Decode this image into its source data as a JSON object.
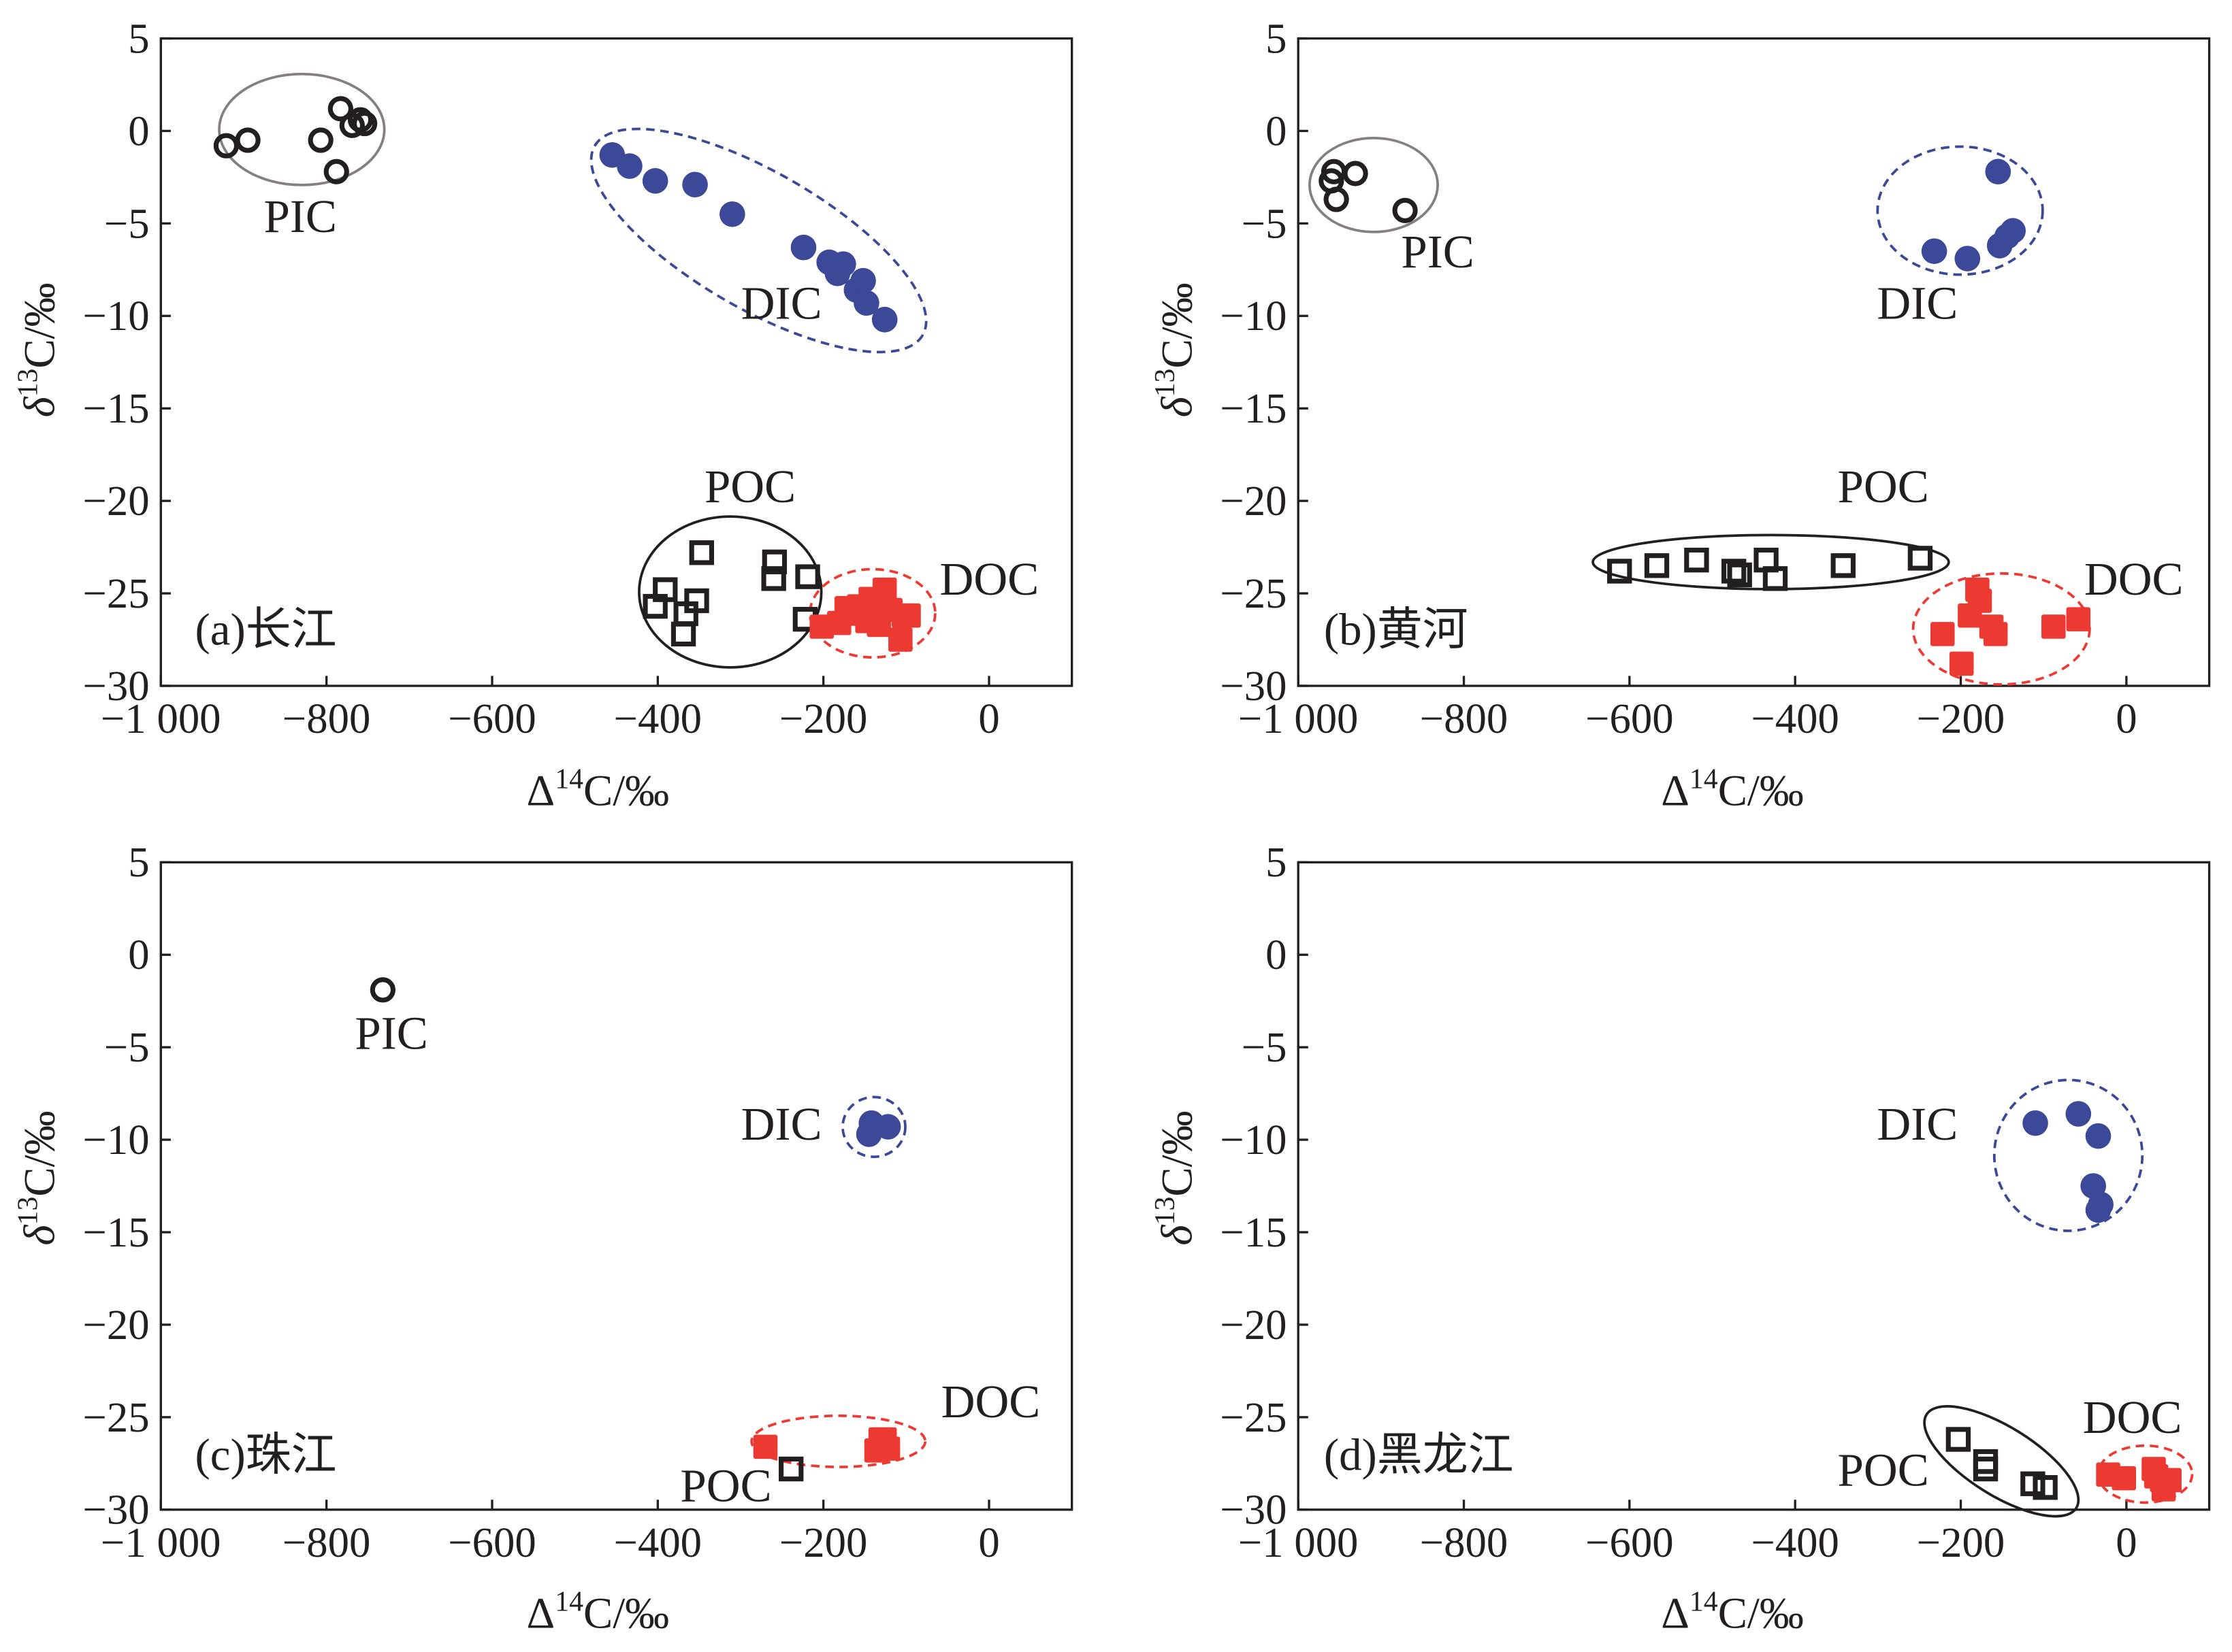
{
  "colors": {
    "ink": "#231f20",
    "dic_blue": "#3c4898",
    "doc_red": "#ec3a33",
    "pic_ellipse_gray": "#85807f"
  },
  "chart_data": [
    {
      "type": "scatter",
      "panel_label": "(a)长江",
      "xlabel": {
        "symbol": "Δ",
        "superscript": "14",
        "rest": "C/‰"
      },
      "ylabel": {
        "symbol": "δ",
        "superscript": "13",
        "rest": "C/‰"
      },
      "xlim": [
        -1000,
        100
      ],
      "ylim": [
        -30,
        5
      ],
      "xticks": [
        {
          "value": -1000,
          "label": "−1 000"
        },
        {
          "value": -800,
          "label": "−800"
        },
        {
          "value": -600,
          "label": "−600"
        },
        {
          "value": -400,
          "label": "−400"
        },
        {
          "value": -200,
          "label": "−200"
        },
        {
          "value": 0,
          "label": "0"
        }
      ],
      "yticks": [
        {
          "value": 5,
          "label": "5"
        },
        {
          "value": 0,
          "label": "0"
        },
        {
          "value": -5,
          "label": "−5"
        },
        {
          "value": -10,
          "label": "−10"
        },
        {
          "value": -15,
          "label": "−15"
        },
        {
          "value": -20,
          "label": "−20"
        },
        {
          "value": -25,
          "label": "−25"
        },
        {
          "value": -30,
          "label": "−30"
        }
      ],
      "grid": false,
      "legend": "none",
      "series": [
        {
          "name": "PIC",
          "marker": "open-circle",
          "color": "#231f20",
          "points": [
            [
              -921,
              -0.8
            ],
            [
              -895,
              -0.5
            ],
            [
              -807,
              -0.5
            ],
            [
              -783,
              1.2
            ],
            [
              -769,
              0.3
            ],
            [
              -759,
              0.6
            ],
            [
              -754,
              0.4
            ],
            [
              -788,
              -2.2
            ]
          ]
        },
        {
          "name": "DIC",
          "marker": "filled-circle",
          "color": "#3c4898",
          "points": [
            [
              -455,
              -1.3
            ],
            [
              -434,
              -1.9
            ],
            [
              -403,
              -2.7
            ],
            [
              -355,
              -2.9
            ],
            [
              -310,
              -4.5
            ],
            [
              -224,
              -6.3
            ],
            [
              -193,
              -7.1
            ],
            [
              -176,
              -7.2
            ],
            [
              -183,
              -7.7
            ],
            [
              -160,
              -8.6
            ],
            [
              -152,
              -8.1
            ],
            [
              -148,
              -9.3
            ],
            [
              -126,
              -10.2
            ]
          ]
        },
        {
          "name": "POC",
          "marker": "open-square",
          "color": "#231f20",
          "points": [
            [
              -347,
              -22.8
            ],
            [
              -259,
              -23.3
            ],
            [
              -260,
              -24.2
            ],
            [
              -219,
              -24.1
            ],
            [
              -391,
              -24.8
            ],
            [
              -353,
              -25.4
            ],
            [
              -403,
              -25.7
            ],
            [
              -366,
              -26.1
            ],
            [
              -369,
              -27.2
            ],
            [
              -222,
              -26.4
            ]
          ]
        },
        {
          "name": "DOC",
          "marker": "filled-square",
          "color": "#ec3a33",
          "points": [
            [
              -202,
              -26.8
            ],
            [
              -181,
              -26.6
            ],
            [
              -167,
              -26.1
            ],
            [
              -157,
              -25.7
            ],
            [
              -147,
              -26.5
            ],
            [
              -126,
              -24.8
            ],
            [
              -119,
              -25.9
            ],
            [
              -103,
              -26.2
            ],
            [
              -97,
              -26.2
            ],
            [
              -107,
              -27.5
            ],
            [
              -133,
              -26.7
            ],
            [
              -172,
              -25.8
            ],
            [
              -143,
              -25.3
            ]
          ]
        }
      ]
    },
    {
      "type": "scatter",
      "panel_label": "(b)黄河",
      "xlabel": {
        "symbol": "Δ",
        "superscript": "14",
        "rest": "C/‰"
      },
      "ylabel": {
        "symbol": "δ",
        "superscript": "13",
        "rest": "C/‰"
      },
      "xlim": [
        -1000,
        100
      ],
      "ylim": [
        -30,
        5
      ],
      "xticks": [
        {
          "value": -1000,
          "label": "−1 000"
        },
        {
          "value": -800,
          "label": "−800"
        },
        {
          "value": -600,
          "label": "−600"
        },
        {
          "value": -400,
          "label": "−400"
        },
        {
          "value": -200,
          "label": "−200"
        },
        {
          "value": 0,
          "label": "0"
        }
      ],
      "yticks": [
        {
          "value": 5,
          "label": "5"
        },
        {
          "value": 0,
          "label": "0"
        },
        {
          "value": -5,
          "label": "−5"
        },
        {
          "value": -10,
          "label": "−10"
        },
        {
          "value": -15,
          "label": "−15"
        },
        {
          "value": -20,
          "label": "−20"
        },
        {
          "value": -25,
          "label": "−25"
        },
        {
          "value": -30,
          "label": "−30"
        }
      ],
      "grid": false,
      "legend": "none",
      "series": [
        {
          "name": "PIC",
          "marker": "open-circle",
          "color": "#231f20",
          "points": [
            [
              -957,
              -2.2
            ],
            [
              -960,
              -2.7
            ],
            [
              -931,
              -2.3
            ],
            [
              -954,
              -3.7
            ],
            [
              -871,
              -4.3
            ]
          ]
        },
        {
          "name": "DIC",
          "marker": "filled-circle",
          "color": "#3c4898",
          "points": [
            [
              -155,
              -2.2
            ],
            [
              -232,
              -6.5
            ],
            [
              -192,
              -6.9
            ],
            [
              -153,
              -6.2
            ],
            [
              -144,
              -5.7
            ],
            [
              -137,
              -5.4
            ]
          ]
        },
        {
          "name": "POC",
          "marker": "open-square",
          "color": "#231f20",
          "points": [
            [
              -612,
              -23.8
            ],
            [
              -567,
              -23.5
            ],
            [
              -519,
              -23.2
            ],
            [
              -474,
              -23.8
            ],
            [
              -467,
              -24.0
            ],
            [
              -435,
              -23.2
            ],
            [
              -424,
              -24.2
            ],
            [
              -342,
              -23.5
            ],
            [
              -249,
              -23.1
            ]
          ]
        },
        {
          "name": "DOC",
          "marker": "filled-square",
          "color": "#ec3a33",
          "points": [
            [
              -222,
              -27.2
            ],
            [
              -180,
              -24.8
            ],
            [
              -177,
              -25.4
            ],
            [
              -189,
              -26.2
            ],
            [
              -199,
              -28.8
            ],
            [
              -163,
              -26.8
            ],
            [
              -158,
              -27.2
            ],
            [
              -88,
              -26.8
            ],
            [
              -58,
              -26.4
            ]
          ]
        }
      ]
    },
    {
      "type": "scatter",
      "panel_label": "(c)珠江",
      "xlabel": {
        "symbol": "Δ",
        "superscript": "14",
        "rest": "C/‰"
      },
      "ylabel": {
        "symbol": "δ",
        "superscript": "13",
        "rest": "C/‰"
      },
      "xlim": [
        -1000,
        100
      ],
      "ylim": [
        -30,
        5
      ],
      "xticks": [
        {
          "value": -1000,
          "label": "−1 000"
        },
        {
          "value": -800,
          "label": "−800"
        },
        {
          "value": -600,
          "label": "−600"
        },
        {
          "value": -400,
          "label": "−400"
        },
        {
          "value": -200,
          "label": "−200"
        },
        {
          "value": 0,
          "label": "0"
        }
      ],
      "yticks": [
        {
          "value": 5,
          "label": "5"
        },
        {
          "value": 0,
          "label": "0"
        },
        {
          "value": -5,
          "label": "−5"
        },
        {
          "value": -10,
          "label": "−10"
        },
        {
          "value": -15,
          "label": "−15"
        },
        {
          "value": -20,
          "label": "−20"
        },
        {
          "value": -25,
          "label": "−25"
        },
        {
          "value": -30,
          "label": "−30"
        }
      ],
      "grid": false,
      "legend": "none",
      "series": [
        {
          "name": "PIC",
          "marker": "open-circle",
          "color": "#231f20",
          "points": [
            [
              -732,
              -1.9
            ]
          ]
        },
        {
          "name": "DIC",
          "marker": "filled-circle",
          "color": "#3c4898",
          "points": [
            [
              -142,
              -9.1
            ],
            [
              -145,
              -9.7
            ],
            [
              -122,
              -9.3
            ]
          ]
        },
        {
          "name": "POC",
          "marker": "open-square",
          "color": "#231f20",
          "points": [
            [
              -239,
              -27.8
            ]
          ]
        },
        {
          "name": "DOC",
          "marker": "filled-square",
          "color": "#ec3a33",
          "points": [
            [
              -270,
              -26.6
            ],
            [
              -131,
              -26.2
            ],
            [
              -136,
              -26.8
            ],
            [
              -122,
              -26.7
            ],
            [
              -126,
              -26.2
            ]
          ]
        }
      ]
    },
    {
      "type": "scatter",
      "panel_label": "(d)黑龙江",
      "xlabel": {
        "symbol": "Δ",
        "superscript": "14",
        "rest": "C/‰"
      },
      "ylabel": {
        "symbol": "δ",
        "superscript": "13",
        "rest": "C/‰"
      },
      "xlim": [
        -1000,
        100
      ],
      "ylim": [
        -30,
        5
      ],
      "xticks": [
        {
          "value": -1000,
          "label": "−1 000"
        },
        {
          "value": -800,
          "label": "−800"
        },
        {
          "value": -600,
          "label": "−600"
        },
        {
          "value": -400,
          "label": "−400"
        },
        {
          "value": -200,
          "label": "−200"
        },
        {
          "value": 0,
          "label": "0"
        }
      ],
      "yticks": [
        {
          "value": 5,
          "label": "5"
        },
        {
          "value": 0,
          "label": "0"
        },
        {
          "value": -5,
          "label": "−5"
        },
        {
          "value": -10,
          "label": "−10"
        },
        {
          "value": -15,
          "label": "−15"
        },
        {
          "value": -20,
          "label": "−20"
        },
        {
          "value": -25,
          "label": "−25"
        },
        {
          "value": -30,
          "label": "−30"
        }
      ],
      "grid": false,
      "legend": "none",
      "series": [
        {
          "name": "DIC",
          "marker": "filled-circle",
          "color": "#3c4898",
          "points": [
            [
              -110,
              -9.1
            ],
            [
              -58,
              -8.6
            ],
            [
              -34,
              -9.8
            ],
            [
              -40,
              -12.5
            ],
            [
              -31,
              -13.5
            ],
            [
              -34,
              -13.8
            ]
          ]
        },
        {
          "name": "POC",
          "marker": "open-square",
          "color": "#231f20",
          "points": [
            [
              -203,
              -26.2
            ],
            [
              -170,
              -27.4
            ],
            [
              -170,
              -27.8
            ],
            [
              -113,
              -28.6
            ],
            [
              -98,
              -28.8
            ]
          ]
        },
        {
          "name": "DOC",
          "marker": "filled-square",
          "color": "#ec3a33",
          "points": [
            [
              -22,
              -28.1
            ],
            [
              -3,
              -28.3
            ],
            [
              33,
              -27.8
            ],
            [
              43,
              -28.4
            ],
            [
              52,
              -28.4
            ],
            [
              45,
              -28.9
            ],
            [
              36,
              -28.2
            ]
          ]
        }
      ]
    }
  ]
}
